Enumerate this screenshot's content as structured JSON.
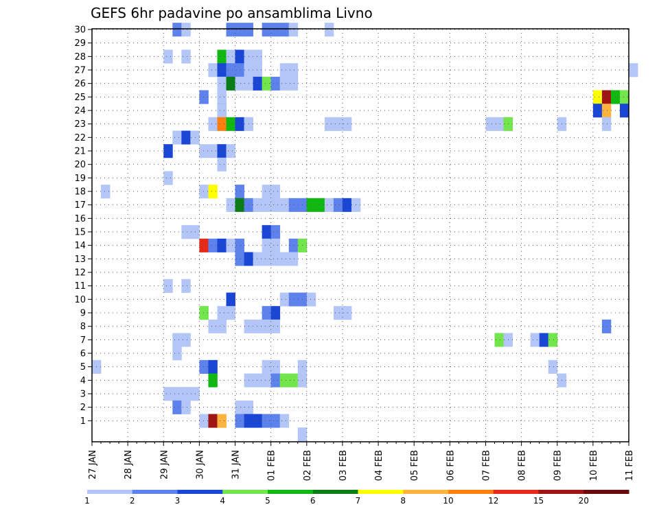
{
  "chart_data": {
    "type": "heatmap",
    "title": "GEFS 6hr padavine po ansamblima Livno",
    "xlabel": "",
    "ylabel": "",
    "x_ticks": [
      "27 JAN",
      "28 JAN",
      "29 JAN",
      "30 JAN",
      "31 JAN",
      "01 FEB",
      "02 FEB",
      "03 FEB",
      "04 FEB",
      "05 FEB",
      "06 FEB",
      "07 FEB",
      "08 FEB",
      "09 FEB",
      "10 FEB",
      "11 FEB"
    ],
    "x_range_days": [
      0,
      15
    ],
    "y_ticks": [
      1,
      2,
      3,
      4,
      5,
      6,
      7,
      8,
      9,
      10,
      11,
      12,
      13,
      14,
      15,
      16,
      17,
      18,
      19,
      20,
      21,
      22,
      23,
      24,
      25,
      26,
      27,
      28,
      29,
      30
    ],
    "y_range": [
      0,
      30
    ],
    "grid": true,
    "colorbar": {
      "position": "bottom",
      "labels": [
        "1",
        "2",
        "3",
        "4",
        "5",
        "6",
        "7",
        "8",
        "10",
        "12",
        "15",
        "20"
      ],
      "colors": [
        "#b3c6f7",
        "#5d82ec",
        "#1a46d6",
        "#73e54d",
        "#12b812",
        "#0a7d16",
        "#ffff00",
        "#ffb33f",
        "#ff7f0f",
        "#e62a1a",
        "#a01414",
        "#6b0a0a"
      ]
    },
    "cells": [
      {
        "m": 30,
        "t": [
          [
            9,
            2
          ],
          [
            10,
            1
          ],
          [
            15,
            2
          ],
          [
            16,
            2
          ],
          [
            17,
            2
          ],
          [
            19,
            2
          ],
          [
            20,
            2
          ],
          [
            21,
            2
          ],
          [
            22,
            1
          ],
          [
            26,
            1
          ]
        ]
      },
      {
        "m": 28,
        "t": [
          [
            8,
            1
          ],
          [
            10,
            1
          ],
          [
            14,
            5
          ],
          [
            15,
            1
          ],
          [
            16,
            3
          ],
          [
            17,
            1
          ],
          [
            18,
            1
          ]
        ]
      },
      {
        "m": 27,
        "t": [
          [
            13,
            1
          ],
          [
            14,
            3
          ],
          [
            15,
            2
          ],
          [
            16,
            2
          ],
          [
            17,
            1
          ],
          [
            18,
            1
          ],
          [
            21,
            1
          ],
          [
            22,
            1
          ],
          [
            60,
            1
          ]
        ]
      },
      {
        "m": 26,
        "t": [
          [
            14,
            1
          ],
          [
            15,
            6
          ],
          [
            16,
            1
          ],
          [
            17,
            1
          ],
          [
            18,
            3
          ],
          [
            19,
            4
          ],
          [
            20,
            2
          ],
          [
            21,
            1
          ],
          [
            22,
            1
          ]
        ]
      },
      {
        "m": 25,
        "t": [
          [
            12,
            2
          ],
          [
            14,
            1
          ],
          [
            56,
            7
          ],
          [
            57,
            11
          ],
          [
            58,
            5
          ],
          [
            59,
            4
          ]
        ]
      },
      {
        "m": 24,
        "t": [
          [
            14,
            5
          ],
          [
            14,
            1
          ],
          [
            56,
            3
          ],
          [
            57,
            8
          ],
          [
            59,
            3
          ]
        ]
      },
      {
        "m": 23,
        "t": [
          [
            13,
            1
          ],
          [
            14,
            9
          ],
          [
            15,
            5
          ],
          [
            16,
            3
          ],
          [
            17,
            1
          ],
          [
            26,
            1
          ],
          [
            27,
            1
          ],
          [
            28,
            1
          ],
          [
            44,
            1
          ],
          [
            45,
            1
          ],
          [
            46,
            4
          ],
          [
            52,
            1
          ],
          [
            57,
            1
          ]
        ]
      },
      {
        "m": 22,
        "t": [
          [
            9,
            1
          ],
          [
            10,
            3
          ],
          [
            11,
            1
          ]
        ]
      },
      {
        "m": 21,
        "t": [
          [
            8,
            3
          ],
          [
            12,
            1
          ],
          [
            13,
            1
          ],
          [
            14,
            3
          ],
          [
            15,
            1
          ]
        ]
      },
      {
        "m": 20,
        "t": [
          [
            14,
            1
          ]
        ]
      },
      {
        "m": 19,
        "t": [
          [
            8,
            1
          ]
        ]
      },
      {
        "m": 18,
        "t": [
          [
            1,
            1
          ],
          [
            12,
            1
          ],
          [
            13,
            7
          ],
          [
            16,
            2
          ],
          [
            19,
            1
          ],
          [
            20,
            1
          ]
        ]
      },
      {
        "m": 17,
        "t": [
          [
            15,
            1
          ],
          [
            16,
            6
          ],
          [
            17,
            2
          ],
          [
            18,
            1
          ],
          [
            19,
            1
          ],
          [
            20,
            1
          ],
          [
            21,
            1
          ],
          [
            22,
            2
          ],
          [
            23,
            2
          ],
          [
            24,
            5
          ],
          [
            25,
            5
          ],
          [
            26,
            1
          ],
          [
            27,
            2
          ],
          [
            28,
            3
          ],
          [
            29,
            1
          ]
        ]
      },
      {
        "m": 15,
        "t": [
          [
            10,
            1
          ],
          [
            11,
            1
          ],
          [
            19,
            3
          ],
          [
            20,
            2
          ]
        ]
      },
      {
        "m": 14,
        "t": [
          [
            12,
            10
          ],
          [
            13,
            2
          ],
          [
            14,
            3
          ],
          [
            15,
            1
          ],
          [
            16,
            2
          ],
          [
            19,
            1
          ],
          [
            20,
            1
          ],
          [
            22,
            2
          ],
          [
            23,
            4
          ]
        ]
      },
      {
        "m": 13,
        "t": [
          [
            16,
            2
          ],
          [
            17,
            3
          ],
          [
            18,
            1
          ],
          [
            19,
            1
          ],
          [
            20,
            1
          ],
          [
            21,
            1
          ],
          [
            22,
            1
          ]
        ]
      },
      {
        "m": 11,
        "t": [
          [
            8,
            1
          ],
          [
            10,
            1
          ]
        ]
      },
      {
        "m": 10,
        "t": [
          [
            15,
            3
          ],
          [
            21,
            1
          ],
          [
            22,
            2
          ],
          [
            23,
            2
          ],
          [
            24,
            1
          ]
        ]
      },
      {
        "m": 9,
        "t": [
          [
            12,
            4
          ],
          [
            14,
            1
          ],
          [
            15,
            1
          ],
          [
            19,
            2
          ],
          [
            20,
            3
          ],
          [
            27,
            1
          ],
          [
            28,
            1
          ]
        ]
      },
      {
        "m": 8,
        "t": [
          [
            13,
            1
          ],
          [
            14,
            1
          ],
          [
            17,
            1
          ],
          [
            18,
            1
          ],
          [
            19,
            1
          ],
          [
            20,
            1
          ],
          [
            57,
            2
          ]
        ]
      },
      {
        "m": 7,
        "t": [
          [
            9,
            1
          ],
          [
            10,
            1
          ],
          [
            45,
            4
          ],
          [
            46,
            1
          ],
          [
            49,
            1
          ],
          [
            50,
            3
          ],
          [
            51,
            4
          ]
        ]
      },
      {
        "m": 6,
        "t": [
          [
            9,
            1
          ]
        ]
      },
      {
        "m": 5,
        "t": [
          [
            0,
            1
          ],
          [
            12,
            2
          ],
          [
            13,
            3
          ],
          [
            19,
            1
          ],
          [
            20,
            1
          ],
          [
            23,
            1
          ],
          [
            51,
            1
          ]
        ]
      },
      {
        "m": 4,
        "t": [
          [
            13,
            5
          ],
          [
            17,
            1
          ],
          [
            18,
            1
          ],
          [
            19,
            1
          ],
          [
            20,
            2
          ],
          [
            21,
            4
          ],
          [
            22,
            4
          ],
          [
            23,
            1
          ],
          [
            52,
            1
          ]
        ]
      },
      {
        "m": 3,
        "t": [
          [
            8,
            1
          ],
          [
            9,
            1
          ],
          [
            10,
            1
          ],
          [
            11,
            1
          ]
        ]
      },
      {
        "m": 2,
        "t": [
          [
            9,
            2
          ],
          [
            10,
            1
          ],
          [
            16,
            1
          ],
          [
            17,
            1
          ]
        ]
      },
      {
        "m": 1,
        "t": [
          [
            12,
            1
          ],
          [
            13,
            11
          ],
          [
            14,
            8
          ],
          [
            16,
            2
          ],
          [
            17,
            3
          ],
          [
            18,
            3
          ],
          [
            19,
            2
          ],
          [
            20,
            2
          ],
          [
            21,
            1
          ]
        ]
      },
      {
        "m": 0,
        "t": [
          [
            23,
            1
          ]
        ]
      }
    ]
  }
}
